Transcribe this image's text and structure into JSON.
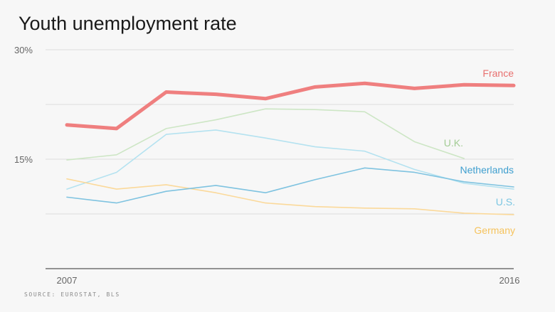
{
  "chart_data": {
    "type": "line",
    "title": "Youth unemployment rate",
    "source": "SOURCE: EUROSTAT, BLS",
    "x": [
      2007,
      2008,
      2009,
      2010,
      2011,
      2012,
      2013,
      2014,
      2015,
      2016
    ],
    "x_tick_labels": [
      "2007",
      "2016"
    ],
    "y_tick_labels": [
      "30%",
      "15%"
    ],
    "ylim": [
      0,
      30
    ],
    "grid": true,
    "series": [
      {
        "name": "France",
        "color": "#ef7f7f",
        "values": [
          19.7,
          19.2,
          24.2,
          23.9,
          23.3,
          24.9,
          25.4,
          24.7,
          25.2,
          25.1
        ]
      },
      {
        "name": "U.K.",
        "color": "#cde6c5",
        "values": [
          14.9,
          15.6,
          19.2,
          20.4,
          21.9,
          21.8,
          21.5,
          17.4,
          15.1,
          null
        ]
      },
      {
        "name": "Netherlands",
        "color": "#7fc3e0",
        "values": [
          9.8,
          9.0,
          10.6,
          11.4,
          10.4,
          12.2,
          13.8,
          13.2,
          11.9,
          11.2
        ]
      },
      {
        "name": "U.S.",
        "color": "#b4e2f0",
        "values": [
          10.9,
          13.2,
          18.4,
          19.0,
          17.9,
          16.7,
          16.1,
          13.6,
          11.7,
          10.9
        ]
      },
      {
        "name": "Germany",
        "color": "#fbd99a",
        "values": [
          12.3,
          10.9,
          11.5,
          10.4,
          9.0,
          8.5,
          8.3,
          8.2,
          7.6,
          7.4
        ]
      }
    ]
  }
}
